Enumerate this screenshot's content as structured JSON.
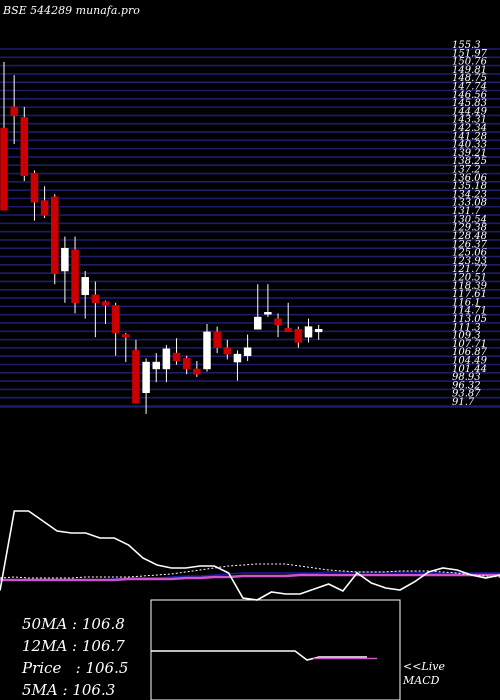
{
  "title": "BSE 544289 munafa.pro",
  "colors": {
    "background": "#000000",
    "grid": "#1c1c6e",
    "bullish": "#ffffff",
    "bearish": "#cc0000",
    "wick": "#ffffff",
    "text": "#ffffff",
    "ma_line": "#ffffff",
    "signal_line": "#cc55cc",
    "ma_blue": "#1a1aa0"
  },
  "chart_data": {
    "type": "candlestick",
    "ylim": [
      89.0,
      157.0
    ],
    "price_ticks": [
      "155.3",
      "151.97",
      "150.76",
      "149.81",
      "148.75",
      "147.74",
      "146.56",
      "145.83",
      "144.49",
      "143.31",
      "142.34",
      "141.28",
      "140.33",
      "139.21",
      "138.25",
      "137.2",
      "136.06",
      "135.18",
      "134.23",
      "133.08",
      "131.7",
      "130.54",
      "129.38",
      "128.48",
      "126.37",
      "125.06",
      "123.93",
      "121.77",
      "120.51",
      "118.39",
      "117.61",
      "116.1",
      "114.71",
      "113.05",
      "111.3",
      "109.3",
      "107.71",
      "106.87",
      "104.49",
      "101.44",
      "98.93",
      "96.32",
      "93.87",
      "91.7"
    ],
    "candles": [
      {
        "o": 141.5,
        "h": 154.0,
        "l": 126.0,
        "c": 126.0
      },
      {
        "o": 145.5,
        "h": 151.5,
        "l": 138.5,
        "c": 143.8
      },
      {
        "o": 143.5,
        "h": 145.5,
        "l": 131.5,
        "c": 132.5
      },
      {
        "o": 133.0,
        "h": 133.5,
        "l": 124.0,
        "c": 127.5
      },
      {
        "o": 127.8,
        "h": 130.5,
        "l": 124.5,
        "c": 125.0
      },
      {
        "o": 128.5,
        "h": 129.0,
        "l": 112.0,
        "c": 114.0
      },
      {
        "o": 114.5,
        "h": 121.0,
        "l": 108.5,
        "c": 118.8
      },
      {
        "o": 118.5,
        "h": 121.0,
        "l": 106.5,
        "c": 108.5
      },
      {
        "o": 110.0,
        "h": 114.5,
        "l": 105.5,
        "c": 113.3
      },
      {
        "o": 110.0,
        "h": 112.5,
        "l": 102.0,
        "c": 108.5
      },
      {
        "o": 108.7,
        "h": 108.9,
        "l": 104.5,
        "c": 108.0
      },
      {
        "o": 108.0,
        "h": 108.5,
        "l": 98.5,
        "c": 102.8
      },
      {
        "o": 102.5,
        "h": 102.8,
        "l": 97.3,
        "c": 102.0
      },
      {
        "o": 99.5,
        "h": 101.5,
        "l": 89.5,
        "c": 89.5
      },
      {
        "o": 91.5,
        "h": 98.0,
        "l": 87.5,
        "c": 97.3
      },
      {
        "o": 96.0,
        "h": 99.0,
        "l": 93.5,
        "c": 97.3
      },
      {
        "o": 96.0,
        "h": 100.5,
        "l": 93.5,
        "c": 99.8
      },
      {
        "o": 99.0,
        "h": 101.8,
        "l": 96.8,
        "c": 97.5
      },
      {
        "o": 98.0,
        "h": 98.5,
        "l": 95.0,
        "c": 96.0
      },
      {
        "o": 96.0,
        "h": 97.5,
        "l": 94.5,
        "c": 95.0
      },
      {
        "o": 96.0,
        "h": 104.5,
        "l": 95.5,
        "c": 103.0
      },
      {
        "o": 103.0,
        "h": 104.0,
        "l": 99.0,
        "c": 100.0
      },
      {
        "o": 100.0,
        "h": 101.5,
        "l": 97.8,
        "c": 98.8
      },
      {
        "o": 97.3,
        "h": 99.5,
        "l": 93.8,
        "c": 98.8
      },
      {
        "o": 98.5,
        "h": 102.5,
        "l": 97.5,
        "c": 100.0
      },
      {
        "o": 103.5,
        "h": 112.0,
        "l": 103.5,
        "c": 105.8
      },
      {
        "o": 106.5,
        "h": 112.0,
        "l": 105.8,
        "c": 106.7
      },
      {
        "o": 105.5,
        "h": 106.5,
        "l": 102.0,
        "c": 104.3
      },
      {
        "o": 103.7,
        "h": 108.5,
        "l": 103.5,
        "c": 103.0
      },
      {
        "o": 103.5,
        "h": 104.0,
        "l": 100.0,
        "c": 101.0
      },
      {
        "o": 102.0,
        "h": 105.5,
        "l": 101.0,
        "c": 104.0
      },
      {
        "o": 103.0,
        "h": 104.3,
        "l": 101.5,
        "c": 103.5
      }
    ],
    "ma_panel": {
      "white_line": [
        590.5,
        511,
        511,
        521,
        531,
        533,
        533,
        538,
        538,
        545,
        558,
        565,
        568,
        568,
        566,
        566,
        573,
        598,
        600,
        592,
        594,
        594,
        589,
        584,
        591,
        573,
        583,
        588,
        590,
        582,
        572,
        568,
        570,
        575,
        578,
        575
      ],
      "white_dotted_line": [
        578,
        577,
        578,
        578,
        578,
        578,
        577,
        577,
        577,
        577,
        576,
        575,
        574,
        572,
        570,
        568,
        566,
        565,
        564,
        564,
        564,
        566,
        568,
        570,
        571,
        572,
        572,
        572,
        571,
        571,
        571,
        572,
        573,
        575,
        576,
        577
      ],
      "signal_line": [
        580,
        580,
        580,
        580,
        580,
        580,
        580,
        580,
        580,
        579,
        579,
        579,
        579,
        578,
        578,
        577,
        577,
        576,
        576,
        576,
        576,
        575,
        575,
        575,
        575,
        575,
        575,
        575,
        575,
        575,
        575,
        575,
        575,
        575,
        575,
        575
      ],
      "blue_line": [
        580,
        580,
        580,
        580,
        580,
        580,
        580,
        580,
        579,
        578,
        578,
        578,
        577,
        576,
        576,
        575,
        574,
        573,
        573,
        573,
        573,
        573,
        573,
        572,
        572,
        572,
        572,
        572,
        572,
        572,
        573,
        573,
        573,
        573,
        573,
        573
      ]
    },
    "macd_lines": {
      "main": [
        0,
        0,
        0,
        0,
        0,
        0,
        0,
        0,
        0,
        0,
        0,
        0,
        0,
        -0.6,
        -0.4,
        -0.4,
        -0.4,
        -0.4,
        -0.4
      ],
      "signal": [
        -0.5,
        -0.5,
        -0.5,
        -0.5,
        -0.5
      ]
    }
  },
  "indicators": [
    {
      "label": "50MA : 106.8"
    },
    {
      "label": "12MA : 106.7"
    },
    {
      "label": "Price   : 106.5"
    },
    {
      "label": "5MA : 106.3"
    }
  ],
  "live_label": "<<Live",
  "macd_label": "MACD"
}
